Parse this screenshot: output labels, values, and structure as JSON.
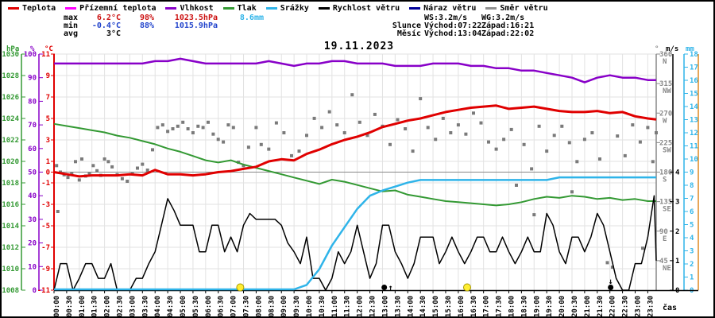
{
  "header": {
    "title": "19.11.2023",
    "legend": [
      {
        "label": "Teplota",
        "color": "#e00000"
      },
      {
        "label": "Přízemní teplota",
        "color": "#ff00ff"
      },
      {
        "label": "Vlhkost",
        "color": "#8800c8"
      },
      {
        "label": "Tlak",
        "color": "#339933"
      },
      {
        "label": "Srážky",
        "color": "#2fb4e9"
      },
      {
        "label": "Rychlost větru",
        "color": "#000000"
      },
      {
        "label": "Náraz větru",
        "color": "#000099"
      },
      {
        "label": "Směr větru",
        "color": "#909090"
      }
    ],
    "stats": {
      "max": {
        "label": "max",
        "temp": "6.2°C",
        "hum": "98%",
        "pres": "1023.5hPa",
        "rain": "8.6mm"
      },
      "min": {
        "label": "min",
        "temp": "-0.4°C",
        "hum": "88%",
        "pres": "1015.9hPa"
      },
      "avg": {
        "label": "avg",
        "temp": "3°C"
      }
    },
    "wind_stats": {
      "ws": "WS:3.2m/s",
      "wg": "WG:3.2m/s"
    },
    "sun": {
      "label": "Slunce",
      "rise": "Východ:07:22",
      "set": "Západ:16:21"
    },
    "moon": {
      "label": "Měsíc",
      "rise": "Východ:13:04",
      "set": "Západ:22:02"
    }
  },
  "colors": {
    "grid": "#e2e2e2",
    "zero_line": "#888888",
    "axis_extra_orange": "#dd8822",
    "dir_axis_gray": "#888888",
    "stat_max": "#cc1111",
    "stat_min": "#2244cc",
    "sun_marker": "#ffee33",
    "sun_marker_stroke": "#a89a00",
    "moon_marker": "#000000"
  },
  "chart_data": {
    "type": "line",
    "title": "19.11.2023",
    "x_axis_label": "čas",
    "x_unit": "hours",
    "x_range_hours": [
      0,
      23.8333
    ],
    "x_ticks": [
      "00:00",
      "00:30",
      "01:00",
      "01:30",
      "02:00",
      "02:30",
      "03:00",
      "03:30",
      "04:00",
      "04:30",
      "05:00",
      "05:30",
      "06:00",
      "06:30",
      "07:00",
      "07:30",
      "08:00",
      "08:30",
      "09:00",
      "09:30",
      "10:00",
      "10:30",
      "11:00",
      "11:30",
      "12:00",
      "12:30",
      "13:00",
      "13:30",
      "14:00",
      "14:30",
      "15:00",
      "15:30",
      "16:00",
      "16:30",
      "17:00",
      "17:30",
      "18:00",
      "18:30",
      "19:00",
      "19:30",
      "20:00",
      "20:30",
      "21:00",
      "21:30",
      "22:00",
      "22:30",
      "23:00",
      "23:30"
    ],
    "axes": {
      "temperature_c": {
        "unit": "°C",
        "color": "#e00000",
        "range": [
          -11,
          11
        ],
        "ticks": [
          11,
          9,
          7,
          5,
          3,
          1,
          0,
          -1,
          -3,
          -5,
          -7,
          -9,
          -11
        ]
      },
      "humidity_pct": {
        "unit": "%",
        "color": "#8800c8",
        "range": [
          0,
          100
        ],
        "ticks": [
          100,
          90,
          80,
          70,
          60,
          50,
          40,
          30,
          20,
          10,
          0
        ]
      },
      "pressure_hpa": {
        "unit": "hPa",
        "color": "#339933",
        "range": [
          1008,
          1030
        ],
        "ticks": [
          1030,
          1028,
          1026,
          1024,
          1022,
          1020,
          1018,
          1016,
          1014,
          1012,
          1010,
          1008
        ]
      },
      "rain_mm": {
        "unit": "mm",
        "color": "#2fb4e9",
        "range": [
          0,
          18
        ],
        "ticks": [
          18,
          17,
          16,
          15,
          14,
          13,
          12,
          11,
          10,
          9,
          8,
          7,
          6,
          5,
          4,
          3,
          2,
          1,
          0
        ]
      },
      "wind_ms": {
        "unit": "m/s",
        "color": "#000000",
        "range": [
          0,
          8
        ],
        "ticks": [
          4,
          3,
          2,
          1,
          0
        ]
      },
      "wind_dir_deg": {
        "unit": "°",
        "color": "#888888",
        "range": [
          0,
          360
        ],
        "ticks": [
          {
            "deg": 360,
            "label": "N"
          },
          {
            "deg": 315,
            "label": "NW"
          },
          {
            "deg": 270,
            "label": "W"
          },
          {
            "deg": 225,
            "label": "SW"
          },
          {
            "deg": 180,
            "label": "S"
          },
          {
            "deg": 135,
            "label": "SE"
          },
          {
            "deg": 90,
            "label": "E"
          },
          {
            "deg": 45,
            "label": "NE"
          }
        ]
      }
    },
    "series": [
      {
        "id": "wind-direction",
        "name": "Směr větru",
        "type": "scatter",
        "axis": "wind_dir_deg",
        "color": "#7a7a7a",
        "points": [
          [
            0.1,
            190
          ],
          [
            0.15,
            120
          ],
          [
            0.25,
            180
          ],
          [
            0.4,
            176
          ],
          [
            0.55,
            172
          ],
          [
            0.7,
            178
          ],
          [
            0.85,
            196
          ],
          [
            1.0,
            168
          ],
          [
            1.1,
            200
          ],
          [
            1.25,
            174
          ],
          [
            1.4,
            178
          ],
          [
            1.55,
            190
          ],
          [
            1.7,
            182
          ],
          [
            1.85,
            175
          ],
          [
            2.0,
            200
          ],
          [
            2.15,
            196
          ],
          [
            2.3,
            188
          ],
          [
            2.5,
            176
          ],
          [
            2.7,
            170
          ],
          [
            2.9,
            166
          ],
          [
            3.1,
            178
          ],
          [
            3.3,
            186
          ],
          [
            3.5,
            192
          ],
          [
            3.7,
            183
          ],
          [
            3.9,
            214
          ],
          [
            4.1,
            248
          ],
          [
            4.3,
            252
          ],
          [
            4.5,
            242
          ],
          [
            4.7,
            246
          ],
          [
            4.9,
            250
          ],
          [
            5.1,
            256
          ],
          [
            5.3,
            246
          ],
          [
            5.5,
            240
          ],
          [
            5.7,
            250
          ],
          [
            5.9,
            248
          ],
          [
            6.1,
            256
          ],
          [
            6.3,
            238
          ],
          [
            6.5,
            230
          ],
          [
            6.7,
            226
          ],
          [
            6.9,
            252
          ],
          [
            7.1,
            248
          ],
          [
            7.3,
            195
          ],
          [
            7.5,
            190
          ],
          [
            7.7,
            218
          ],
          [
            8.0,
            248
          ],
          [
            8.2,
            222
          ],
          [
            8.5,
            215
          ],
          [
            8.8,
            255
          ],
          [
            9.1,
            240
          ],
          [
            9.4,
            205
          ],
          [
            9.7,
            212
          ],
          [
            10.0,
            236
          ],
          [
            10.3,
            262
          ],
          [
            10.6,
            248
          ],
          [
            10.9,
            272
          ],
          [
            11.2,
            252
          ],
          [
            11.5,
            240
          ],
          [
            11.8,
            298
          ],
          [
            12.1,
            256
          ],
          [
            12.4,
            236
          ],
          [
            12.7,
            268
          ],
          [
            13.0,
            250
          ],
          [
            13.3,
            222
          ],
          [
            13.6,
            260
          ],
          [
            13.9,
            246
          ],
          [
            14.2,
            212
          ],
          [
            14.5,
            292
          ],
          [
            14.8,
            248
          ],
          [
            15.1,
            230
          ],
          [
            15.4,
            262
          ],
          [
            15.7,
            240
          ],
          [
            16.0,
            252
          ],
          [
            16.3,
            238
          ],
          [
            16.6,
            270
          ],
          [
            16.9,
            255
          ],
          [
            17.2,
            226
          ],
          [
            17.5,
            215
          ],
          [
            17.8,
            230
          ],
          [
            18.1,
            245
          ],
          [
            18.3,
            160
          ],
          [
            18.6,
            222
          ],
          [
            18.9,
            185
          ],
          [
            19.0,
            115
          ],
          [
            19.2,
            250
          ],
          [
            19.5,
            212
          ],
          [
            19.8,
            236
          ],
          [
            20.1,
            250
          ],
          [
            20.4,
            225
          ],
          [
            20.5,
            150
          ],
          [
            20.7,
            196
          ],
          [
            21.0,
            230
          ],
          [
            21.3,
            240
          ],
          [
            21.6,
            200
          ],
          [
            21.9,
            42
          ],
          [
            22.1,
            35
          ],
          [
            22.3,
            235
          ],
          [
            22.6,
            205
          ],
          [
            22.9,
            252
          ],
          [
            23.2,
            226
          ],
          [
            23.3,
            64
          ],
          [
            23.5,
            248
          ],
          [
            23.7,
            196
          ],
          [
            23.9,
            240
          ]
        ]
      },
      {
        "id": "pressure",
        "name": "Tlak",
        "axis": "pressure_hpa",
        "color": "#339933",
        "width": 2,
        "interval_min": 30,
        "values": [
          1023.5,
          1023.3,
          1023.1,
          1022.9,
          1022.7,
          1022.4,
          1022.2,
          1021.9,
          1021.6,
          1021.2,
          1020.9,
          1020.5,
          1020.1,
          1019.9,
          1020.1,
          1019.7,
          1019.4,
          1019.1,
          1018.8,
          1018.5,
          1018.2,
          1017.9,
          1018.3,
          1018.1,
          1017.8,
          1017.5,
          1017.2,
          1017.3,
          1016.9,
          1016.7,
          1016.5,
          1016.3,
          1016.2,
          1016.1,
          1016.0,
          1015.9,
          1016.0,
          1016.2,
          1016.5,
          1016.7,
          1016.6,
          1016.8,
          1016.7,
          1016.5,
          1016.6,
          1016.4,
          1016.5,
          1016.3,
          1016.3
        ]
      },
      {
        "id": "humidity",
        "name": "Vlhkost",
        "axis": "humidity_pct",
        "color": "#8800c8",
        "width": 2.5,
        "interval_min": 30,
        "values": [
          96,
          96,
          96,
          96,
          96,
          96,
          96,
          96,
          97,
          97,
          98,
          97,
          96,
          96,
          96,
          96,
          96,
          97,
          96,
          95,
          96,
          96,
          97,
          97,
          96,
          96,
          96,
          95,
          95,
          95,
          96,
          96,
          96,
          95,
          95,
          94,
          94,
          93,
          93,
          92,
          91,
          90,
          88,
          90,
          91,
          90,
          90,
          89,
          89
        ]
      },
      {
        "id": "wind-speed",
        "name": "Rychlost větru",
        "axis": "wind_ms",
        "color": "#000000",
        "width": 1.5,
        "interval_min": 15,
        "values": [
          0.0,
          0.9,
          0.9,
          0.0,
          0.4,
          0.9,
          0.9,
          0.4,
          0.4,
          0.9,
          0.0,
          0.0,
          0.0,
          0.4,
          0.4,
          0.9,
          1.3,
          2.2,
          3.1,
          2.7,
          2.2,
          2.2,
          2.2,
          1.3,
          1.3,
          2.2,
          2.2,
          1.3,
          1.8,
          1.3,
          2.2,
          2.6,
          2.4,
          2.4,
          2.4,
          2.4,
          2.2,
          1.6,
          1.3,
          0.9,
          1.8,
          0.4,
          0.4,
          0.0,
          0.4,
          1.3,
          0.9,
          1.3,
          2.2,
          1.3,
          0.4,
          0.9,
          2.2,
          2.2,
          1.3,
          0.9,
          0.4,
          0.9,
          1.8,
          1.8,
          1.8,
          0.9,
          1.3,
          1.8,
          1.3,
          0.9,
          1.3,
          1.8,
          1.8,
          1.3,
          1.3,
          1.8,
          1.3,
          0.9,
          1.3,
          1.8,
          1.3,
          1.3,
          2.6,
          2.2,
          1.3,
          0.9,
          1.8,
          1.8,
          1.3,
          1.8,
          2.6,
          2.2,
          1.3,
          0.4,
          0.0,
          0.0,
          0.9,
          0.9,
          1.8,
          3.2,
          1.0
        ]
      },
      {
        "id": "rain",
        "name": "Srážky",
        "axis": "rain_mm",
        "color": "#2fb4e9",
        "width": 2.5,
        "interval_min": 30,
        "values": [
          0,
          0,
          0,
          0,
          0,
          0,
          0,
          0,
          0,
          0,
          0,
          0,
          0,
          0,
          0,
          0,
          0,
          0,
          0,
          0,
          0.4,
          1.6,
          3.4,
          4.8,
          6.2,
          7.2,
          7.6,
          7.9,
          8.2,
          8.4,
          8.4,
          8.4,
          8.4,
          8.4,
          8.4,
          8.4,
          8.4,
          8.4,
          8.4,
          8.4,
          8.6,
          8.6,
          8.6,
          8.6,
          8.6,
          8.6,
          8.6,
          8.6,
          8.6
        ]
      },
      {
        "id": "temperature",
        "name": "Teplota",
        "axis": "temperature_c",
        "color": "#e00000",
        "width": 3,
        "interval_min": 30,
        "values": [
          0.0,
          -0.2,
          -0.4,
          -0.3,
          -0.3,
          -0.3,
          -0.2,
          -0.3,
          0.2,
          -0.2,
          -0.2,
          -0.3,
          -0.2,
          0.0,
          0.1,
          0.3,
          0.5,
          1.0,
          1.2,
          1.1,
          1.7,
          2.1,
          2.6,
          3.0,
          3.3,
          3.7,
          4.2,
          4.5,
          4.8,
          5.0,
          5.3,
          5.6,
          5.8,
          6.0,
          6.1,
          6.2,
          5.9,
          6.0,
          6.1,
          5.9,
          5.7,
          5.6,
          5.6,
          5.7,
          5.5,
          5.6,
          5.2,
          5.0,
          4.9
        ]
      }
    ],
    "markers": {
      "sunrise": {
        "t_hours": 7.37,
        "time": "07:22"
      },
      "sunset": {
        "t_hours": 16.35,
        "time": "16:21"
      },
      "moonrise": {
        "t_hours": 13.07,
        "time": "13:04"
      },
      "moonset": {
        "t_hours": 22.03,
        "time": "22:02"
      }
    },
    "grid": true,
    "legend_position": "top"
  }
}
